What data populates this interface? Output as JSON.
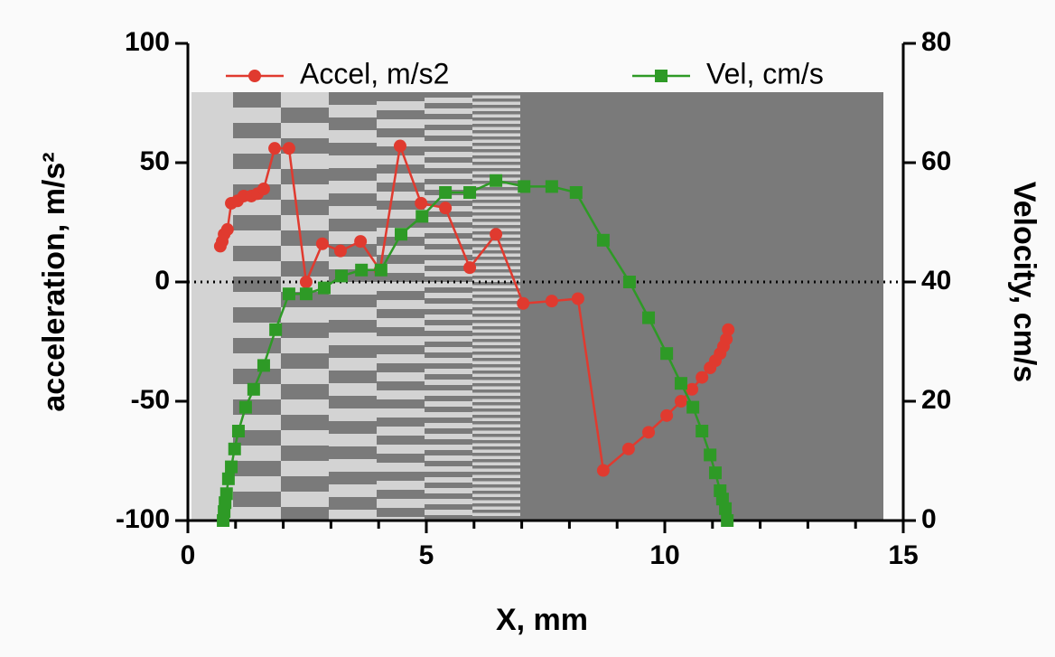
{
  "chart_data": {
    "type": "line",
    "xlabel": "X, mm",
    "ylabel": "acceleration, m/s²",
    "y2label": "Velocity, cm/s",
    "xlim": [
      0,
      15
    ],
    "xticks": [
      0,
      5,
      10,
      15
    ],
    "ylim": [
      -100,
      100
    ],
    "yticks": [
      -100,
      -50,
      0,
      50,
      100
    ],
    "y2lim": [
      0,
      80
    ],
    "y2ticks": [
      0,
      20,
      40,
      60,
      80
    ],
    "reference_line": 0,
    "series": [
      {
        "name": "Accel, m/s2",
        "color": "#e03a2f",
        "marker": "circle",
        "x": [
          0.68,
          0.72,
          0.76,
          0.83,
          0.91,
          1.04,
          1.17,
          1.33,
          1.46,
          1.59,
          1.82,
          2.12,
          2.48,
          2.82,
          3.2,
          3.62,
          4.03,
          4.45,
          4.89,
          5.4,
          5.91,
          6.46,
          7.03,
          7.63,
          8.18,
          8.71,
          9.24,
          9.66,
          10.04,
          10.34,
          10.57,
          10.78,
          10.95,
          11.06,
          11.16,
          11.23,
          11.29,
          11.33
        ],
        "values": [
          15,
          17,
          20,
          22,
          33,
          34,
          36,
          36,
          37,
          39,
          56,
          56,
          0,
          16,
          13,
          17,
          5,
          57,
          33,
          31,
          6,
          20,
          -9,
          -8,
          -7,
          -79,
          -70,
          -63,
          -56,
          -50,
          -45,
          -40,
          -36,
          -33,
          -30,
          -27,
          -24,
          -20
        ]
      },
      {
        "name": "Vel, cm/s",
        "color": "#2e9a26",
        "marker": "square",
        "axis": "y2",
        "x": [
          0.74,
          0.76,
          0.78,
          0.81,
          0.85,
          0.91,
          0.98,
          1.06,
          1.21,
          1.38,
          1.59,
          1.84,
          2.12,
          2.48,
          2.86,
          3.22,
          3.64,
          4.05,
          4.47,
          4.91,
          5.4,
          5.91,
          6.46,
          7.05,
          7.63,
          8.14,
          8.71,
          9.26,
          9.66,
          10.04,
          10.34,
          10.59,
          10.78,
          10.95,
          11.06,
          11.16,
          11.21,
          11.27,
          11.31
        ],
        "values": [
          0,
          1.5,
          3,
          4.5,
          7,
          9,
          12,
          15,
          19,
          22,
          26,
          32,
          38,
          38,
          39,
          41,
          42,
          42,
          48,
          51,
          55,
          55,
          57,
          56,
          56,
          55,
          47,
          40,
          34,
          28,
          23,
          19,
          15,
          11,
          8,
          5,
          3.6,
          2,
          0
        ]
      }
    ]
  }
}
